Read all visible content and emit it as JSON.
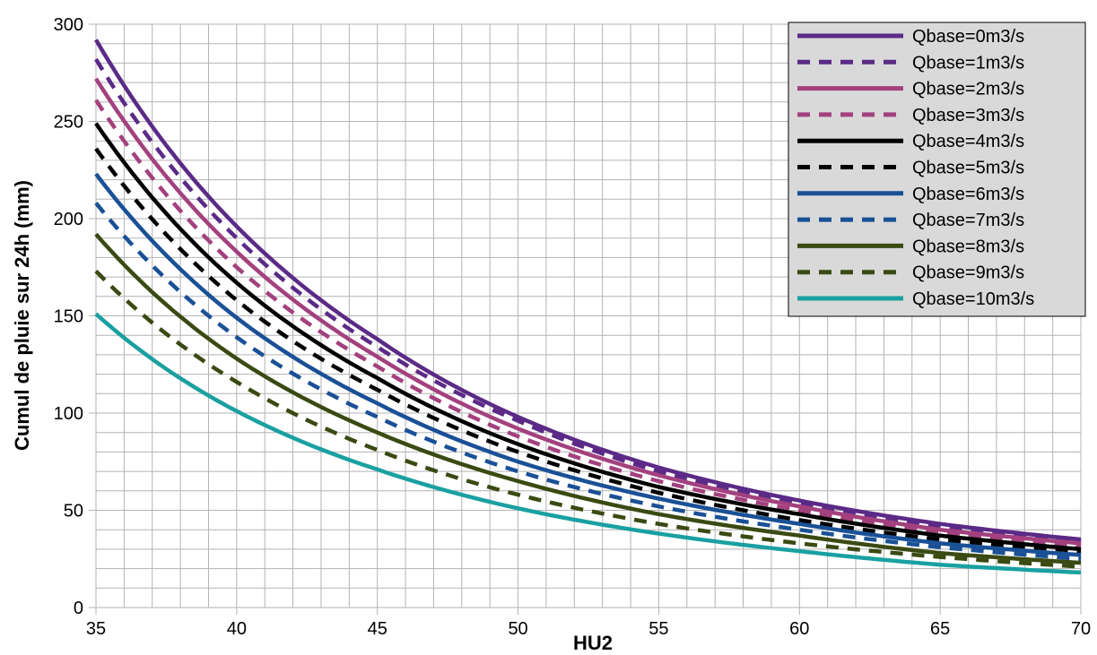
{
  "chart_data": {
    "type": "line",
    "xlabel": "HU2",
    "ylabel": "Cumul de pluie sur 24h (mm)",
    "xlim": [
      35,
      70
    ],
    "ylim": [
      0,
      300
    ],
    "x_ticks": [
      "35",
      "40",
      "45",
      "50",
      "55",
      "60",
      "65",
      "70"
    ],
    "y_ticks": [
      "0",
      "50",
      "100",
      "150",
      "200",
      "250",
      "300"
    ],
    "grid": true,
    "legend_position": "top-right",
    "x": [
      35,
      40,
      45,
      50,
      55,
      60,
      65,
      70
    ],
    "series": [
      {
        "name": "Qbase=0m3/s",
        "color": "#5b2a86",
        "dash": "solid",
        "values": [
          292,
          196,
          138,
          98,
          72,
          55,
          43,
          35
        ]
      },
      {
        "name": "Qbase=1m3/s",
        "color": "#5b2a86",
        "dash": "dashed",
        "values": [
          282,
          190,
          134,
          96,
          70,
          54,
          42,
          34
        ]
      },
      {
        "name": "Qbase=2m3/s",
        "color": "#a3417e",
        "dash": "solid",
        "values": [
          272,
          183,
          129,
          92,
          68,
          52,
          40,
          33
        ]
      },
      {
        "name": "Qbase=3m3/s",
        "color": "#a3417e",
        "dash": "dashed",
        "values": [
          261,
          175,
          124,
          88,
          65,
          50,
          39,
          32
        ]
      },
      {
        "name": "Qbase=4m3/s",
        "color": "#000000",
        "dash": "solid",
        "values": [
          249,
          167,
          118,
          84,
          62,
          48,
          37,
          30
        ]
      },
      {
        "name": "Qbase=5m3/s",
        "color": "#000000",
        "dash": "dashed",
        "values": [
          236,
          158,
          112,
          80,
          59,
          45,
          35,
          29
        ]
      },
      {
        "name": "Qbase=6m3/s",
        "color": "#1a5096",
        "dash": "solid",
        "values": [
          223,
          149,
          105,
          75,
          56,
          43,
          33,
          27
        ]
      },
      {
        "name": "Qbase=7m3/s",
        "color": "#1a5096",
        "dash": "dashed",
        "values": [
          208,
          139,
          98,
          70,
          52,
          40,
          31,
          25
        ]
      },
      {
        "name": "Qbase=8m3/s",
        "color": "#3a4a12",
        "dash": "solid",
        "values": [
          192,
          128,
          90,
          65,
          48,
          37,
          28,
          23
        ]
      },
      {
        "name": "Qbase=9m3/s",
        "color": "#3a4a12",
        "dash": "dashed",
        "values": [
          173,
          116,
          81,
          58,
          43,
          33,
          26,
          21
        ]
      },
      {
        "name": "Qbase=10m3/s",
        "color": "#1aa0a0",
        "dash": "solid",
        "values": [
          151,
          101,
          71,
          51,
          38,
          29,
          22,
          18
        ]
      }
    ]
  }
}
